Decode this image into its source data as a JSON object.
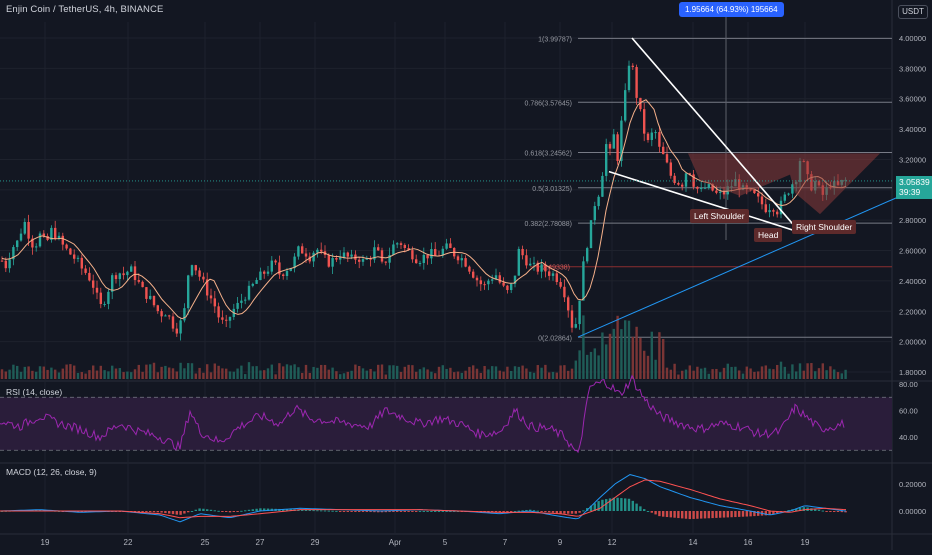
{
  "header": {
    "title": "Enjin Coin / TetherUS, 4h, BINANCE",
    "currency": "USDT"
  },
  "colors": {
    "background": "#131722",
    "bull": "#26a69a",
    "bear": "#ef5350",
    "grid": "#1e222d",
    "axis_text": "#b2b5be",
    "fib_line": "#787b86",
    "fib_label": "#5b9cf6",
    "ma_line": "#f5b08a",
    "trend_white": "#ffffff",
    "trend_blue": "#2196f3",
    "rsi_line": "#9c27b0",
    "rsi_band": "#2a1d3a",
    "macd_line": "#2196f3",
    "signal_line": "#ff5252",
    "pattern_fill": "#8a3a3a"
  },
  "measure_badge": "1.95664 (64.93%) 195664",
  "price_tag": {
    "price": "3.05839",
    "countdown": "39:39"
  },
  "pattern_labels": {
    "left_shoulder": "Left Shoulder",
    "head": "Head",
    "right_shoulder": "Right Shoulder"
  },
  "chart_data": [
    {
      "type": "candlestick",
      "title": "Enjin Coin / TetherUS, 4h, BINANCE",
      "x_ticks": [
        "19",
        "22",
        "25",
        "27",
        "29",
        "Apr",
        "5",
        "7",
        "9",
        "12",
        "14",
        "16",
        "19"
      ],
      "y_ticks": [
        "4.00000",
        "3.80000",
        "3.60000",
        "3.40000",
        "3.20000",
        "3.00000",
        "2.80000",
        "2.60000",
        "2.40000",
        "2.20000",
        "2.00000",
        "1.80000"
      ],
      "ylim": [
        1.78,
        4.22
      ],
      "last_price": 3.05839,
      "fib_levels": [
        {
          "label": "1(3.99787)",
          "value": 3.99787
        },
        {
          "label": "0.786(3.57645)",
          "value": 3.57645
        },
        {
          "label": "0.618(3.24562)",
          "value": 3.24562
        },
        {
          "label": "0.5(3.01325)",
          "value": 3.01325
        },
        {
          "label": "0.382(2.78088)",
          "value": 2.78088
        },
        {
          "label": "(2.49338)",
          "value": 2.49338
        },
        {
          "label": "0(2.02864)",
          "value": 2.02864
        }
      ],
      "close_path": [
        [
          0,
          2.55
        ],
        [
          6,
          2.5
        ],
        [
          12,
          2.62
        ],
        [
          18,
          2.66
        ],
        [
          24,
          2.8
        ],
        [
          28,
          2.72
        ],
        [
          34,
          2.62
        ],
        [
          40,
          2.7
        ],
        [
          46,
          2.64
        ],
        [
          52,
          2.74
        ],
        [
          58,
          2.68
        ],
        [
          64,
          2.62
        ],
        [
          70,
          2.58
        ],
        [
          76,
          2.54
        ],
        [
          82,
          2.48
        ],
        [
          88,
          2.44
        ],
        [
          94,
          2.36
        ],
        [
          100,
          2.22
        ],
        [
          106,
          2.3
        ],
        [
          112,
          2.42
        ],
        [
          118,
          2.46
        ],
        [
          124,
          2.44
        ],
        [
          130,
          2.48
        ],
        [
          136,
          2.42
        ],
        [
          142,
          2.34
        ],
        [
          148,
          2.3
        ],
        [
          154,
          2.24
        ],
        [
          160,
          2.18
        ],
        [
          166,
          2.2
        ],
        [
          172,
          2.12
        ],
        [
          178,
          2.08
        ],
        [
          184,
          2.18
        ],
        [
          190,
          2.56
        ],
        [
          196,
          2.48
        ],
        [
          202,
          2.4
        ],
        [
          208,
          2.32
        ],
        [
          214,
          2.25
        ],
        [
          220,
          2.14
        ],
        [
          226,
          2.1
        ],
        [
          232,
          2.2
        ],
        [
          238,
          2.24
        ],
        [
          244,
          2.3
        ],
        [
          250,
          2.34
        ],
        [
          256,
          2.4
        ],
        [
          262,
          2.44
        ],
        [
          268,
          2.48
        ],
        [
          274,
          2.52
        ],
        [
          280,
          2.44
        ],
        [
          286,
          2.48
        ],
        [
          292,
          2.5
        ],
        [
          298,
          2.6
        ],
        [
          304,
          2.6
        ],
        [
          310,
          2.56
        ],
        [
          316,
          2.62
        ],
        [
          322,
          2.56
        ],
        [
          328,
          2.52
        ],
        [
          334,
          2.54
        ],
        [
          340,
          2.58
        ],
        [
          346,
          2.56
        ],
        [
          352,
          2.54
        ],
        [
          358,
          2.56
        ],
        [
          364,
          2.52
        ],
        [
          370,
          2.56
        ],
        [
          376,
          2.62
        ],
        [
          382,
          2.5
        ],
        [
          388,
          2.56
        ],
        [
          394,
          2.64
        ],
        [
          400,
          2.66
        ],
        [
          406,
          2.6
        ],
        [
          412,
          2.58
        ],
        [
          418,
          2.54
        ],
        [
          424,
          2.56
        ],
        [
          430,
          2.58
        ],
        [
          436,
          2.56
        ],
        [
          442,
          2.6
        ],
        [
          448,
          2.62
        ],
        [
          454,
          2.58
        ],
        [
          460,
          2.56
        ],
        [
          466,
          2.52
        ],
        [
          472,
          2.46
        ],
        [
          478,
          2.4
        ],
        [
          484,
          2.36
        ],
        [
          490,
          2.42
        ],
        [
          496,
          2.44
        ],
        [
          502,
          2.36
        ],
        [
          508,
          2.32
        ],
        [
          514,
          2.4
        ],
        [
          518,
          2.6
        ],
        [
          524,
          2.56
        ],
        [
          530,
          2.5
        ],
        [
          536,
          2.48
        ],
        [
          542,
          2.48
        ],
        [
          548,
          2.46
        ],
        [
          554,
          2.44
        ],
        [
          560,
          2.4
        ],
        [
          566,
          2.3
        ],
        [
          570,
          2.16
        ],
        [
          574,
          2.06
        ],
        [
          578,
          2.2
        ],
        [
          582,
          2.44
        ],
        [
          586,
          2.62
        ],
        [
          590,
          2.72
        ],
        [
          594,
          2.9
        ],
        [
          598,
          2.96
        ],
        [
          602,
          3.1
        ],
        [
          606,
          3.3
        ],
        [
          610,
          3.24
        ],
        [
          614,
          3.36
        ],
        [
          618,
          3.2
        ],
        [
          622,
          3.48
        ],
        [
          626,
          3.66
        ],
        [
          630,
          3.9
        ],
        [
          634,
          3.74
        ],
        [
          638,
          3.56
        ],
        [
          642,
          3.46
        ],
        [
          646,
          3.32
        ],
        [
          650,
          3.3
        ],
        [
          654,
          3.44
        ],
        [
          658,
          3.28
        ],
        [
          662,
          3.24
        ],
        [
          666,
          3.18
        ],
        [
          670,
          3.1
        ],
        [
          676,
          3.06
        ],
        [
          682,
          3.04
        ],
        [
          688,
          3.16
        ],
        [
          694,
          3.04
        ],
        [
          700,
          2.98
        ],
        [
          706,
          3.02
        ],
        [
          712,
          3.0
        ],
        [
          718,
          2.96
        ],
        [
          724,
          2.98
        ],
        [
          730,
          3.02
        ],
        [
          736,
          3.06
        ],
        [
          742,
          3.0
        ],
        [
          748,
          2.98
        ],
        [
          754,
          2.96
        ],
        [
          760,
          2.92
        ],
        [
          766,
          2.88
        ],
        [
          772,
          2.9
        ],
        [
          778,
          2.86
        ],
        [
          784,
          2.94
        ],
        [
          790,
          3.02
        ],
        [
          796,
          3.08
        ],
        [
          800,
          3.2
        ],
        [
          804,
          3.16
        ],
        [
          808,
          3.06
        ],
        [
          812,
          3.02
        ],
        [
          816,
          3.06
        ],
        [
          820,
          2.98
        ],
        [
          824,
          2.96
        ],
        [
          828,
          3.02
        ],
        [
          832,
          3.06
        ],
        [
          836,
          3.0
        ],
        [
          840,
          3.04
        ],
        [
          845,
          3.06
        ]
      ],
      "rsi": {
        "label": "RSI (14, close)",
        "y_ticks": [
          "80.00",
          "60.00",
          "40.00"
        ],
        "upper_band": 70,
        "lower_band": 30,
        "path": [
          [
            0,
            52
          ],
          [
            20,
            48
          ],
          [
            40,
            56
          ],
          [
            60,
            50
          ],
          [
            80,
            46
          ],
          [
            100,
            40
          ],
          [
            120,
            50
          ],
          [
            140,
            44
          ],
          [
            160,
            40
          ],
          [
            180,
            32
          ],
          [
            190,
            60
          ],
          [
            200,
            44
          ],
          [
            220,
            36
          ],
          [
            240,
            48
          ],
          [
            260,
            56
          ],
          [
            280,
            50
          ],
          [
            295,
            62
          ],
          [
            310,
            54
          ],
          [
            330,
            52
          ],
          [
            350,
            50
          ],
          [
            370,
            48
          ],
          [
            385,
            60
          ],
          [
            400,
            56
          ],
          [
            420,
            50
          ],
          [
            440,
            54
          ],
          [
            460,
            50
          ],
          [
            480,
            42
          ],
          [
            500,
            44
          ],
          [
            515,
            60
          ],
          [
            530,
            48
          ],
          [
            550,
            46
          ],
          [
            565,
            40
          ],
          [
            578,
            26
          ],
          [
            590,
            78
          ],
          [
            605,
            82
          ],
          [
            620,
            72
          ],
          [
            632,
            84
          ],
          [
            645,
            68
          ],
          [
            660,
            56
          ],
          [
            680,
            50
          ],
          [
            700,
            46
          ],
          [
            720,
            50
          ],
          [
            740,
            48
          ],
          [
            760,
            42
          ],
          [
            780,
            44
          ],
          [
            795,
            62
          ],
          [
            805,
            56
          ],
          [
            820,
            46
          ],
          [
            845,
            50
          ]
        ]
      },
      "macd": {
        "label": "MACD (12, 26, close, 9)",
        "y_ticks": [
          "0.20000",
          "0.00000"
        ],
        "hist_color_positive": "#26a69a",
        "hist_color_negative": "#ef5350",
        "macd_path": [
          [
            0,
            0.0
          ],
          [
            40,
            0.01
          ],
          [
            80,
            -0.01
          ],
          [
            120,
            0.0
          ],
          [
            160,
            -0.03
          ],
          [
            180,
            -0.08
          ],
          [
            200,
            -0.02
          ],
          [
            230,
            -0.05
          ],
          [
            260,
            0.0
          ],
          [
            300,
            0.02
          ],
          [
            340,
            0.01
          ],
          [
            380,
            0.0
          ],
          [
            420,
            0.01
          ],
          [
            460,
            0.0
          ],
          [
            500,
            -0.02
          ],
          [
            530,
            0.0
          ],
          [
            560,
            -0.04
          ],
          [
            578,
            -0.06
          ],
          [
            600,
            0.1
          ],
          [
            615,
            0.2
          ],
          [
            630,
            0.27
          ],
          [
            645,
            0.24
          ],
          [
            660,
            0.18
          ],
          [
            690,
            0.1
          ],
          [
            720,
            0.04
          ],
          [
            750,
            0.0
          ],
          [
            770,
            -0.03
          ],
          [
            790,
            0.0
          ],
          [
            805,
            0.04
          ],
          [
            825,
            0.02
          ],
          [
            845,
            0.0
          ]
        ],
        "signal_path": [
          [
            0,
            0.0
          ],
          [
            40,
            0.0
          ],
          [
            80,
            0.0
          ],
          [
            120,
            0.0
          ],
          [
            160,
            -0.02
          ],
          [
            180,
            -0.05
          ],
          [
            200,
            -0.04
          ],
          [
            230,
            -0.04
          ],
          [
            260,
            -0.02
          ],
          [
            300,
            0.01
          ],
          [
            340,
            0.01
          ],
          [
            380,
            0.01
          ],
          [
            420,
            0.01
          ],
          [
            460,
            0.0
          ],
          [
            500,
            -0.01
          ],
          [
            530,
            -0.01
          ],
          [
            560,
            -0.02
          ],
          [
            578,
            -0.04
          ],
          [
            600,
            0.02
          ],
          [
            615,
            0.1
          ],
          [
            630,
            0.18
          ],
          [
            645,
            0.23
          ],
          [
            660,
            0.22
          ],
          [
            690,
            0.16
          ],
          [
            720,
            0.09
          ],
          [
            750,
            0.04
          ],
          [
            770,
            0.0
          ],
          [
            790,
            -0.01
          ],
          [
            805,
            0.01
          ],
          [
            825,
            0.02
          ],
          [
            845,
            0.01
          ]
        ]
      }
    }
  ]
}
